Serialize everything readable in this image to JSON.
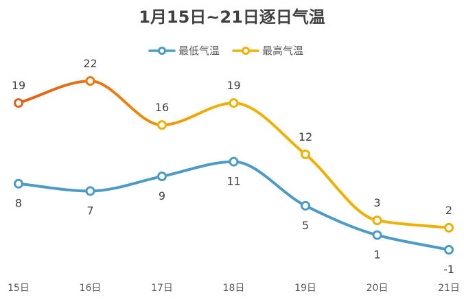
{
  "chart_data": {
    "type": "line",
    "title": "1月15日~21日逐日气温",
    "categories": [
      "15日",
      "16日",
      "17日",
      "18日",
      "19日",
      "20日",
      "21日"
    ],
    "series": [
      {
        "name": "最低气温",
        "values": [
          8,
          7,
          9,
          11,
          5,
          1,
          -1
        ],
        "color": "#4a9bc7",
        "label_position": "below"
      },
      {
        "name": "最高气温",
        "values": [
          19,
          22,
          16,
          19,
          12,
          3,
          2
        ],
        "color": "#f0b000",
        "color_start": "#e2601a",
        "label_position": "above"
      }
    ],
    "xlabel": "",
    "ylabel": "",
    "ylim": [
      -1,
      22
    ],
    "grid": false,
    "legend": "top-center",
    "smooth": true
  }
}
